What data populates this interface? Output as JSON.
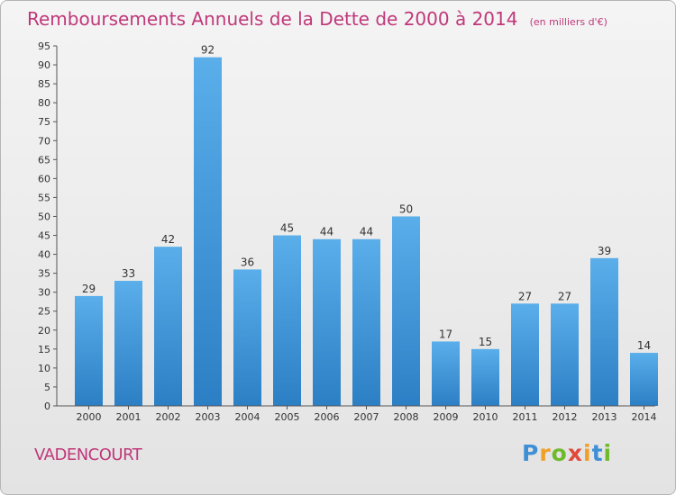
{
  "chart_data": {
    "type": "bar",
    "title": "Remboursements Annuels de la Dette de 2000 à 2014",
    "subtitle": "(en milliers d'€)",
    "xlabel": "",
    "ylabel": "",
    "categories": [
      "2000",
      "2001",
      "2002",
      "2003",
      "2004",
      "2005",
      "2006",
      "2007",
      "2008",
      "2009",
      "2010",
      "2011",
      "2012",
      "2013",
      "2014"
    ],
    "values": [
      29,
      33,
      42,
      92,
      36,
      45,
      44,
      44,
      50,
      17,
      15,
      27,
      27,
      39,
      14
    ],
    "ylim": [
      0,
      95
    ],
    "yticks": [
      0,
      5,
      10,
      15,
      20,
      25,
      30,
      35,
      40,
      45,
      50,
      55,
      60,
      65,
      70,
      75,
      80,
      85,
      90,
      95
    ],
    "grid": false,
    "legend": "none",
    "colors": {
      "bar_light": "#5aaeea",
      "bar_dark": "#2c7fc4",
      "title": "#c0387a",
      "axis": "#333333"
    }
  },
  "commune": "VADENCOURT",
  "logo": {
    "letters": [
      "P",
      "r",
      "o",
      "x",
      "i",
      "t",
      "i"
    ],
    "colors": [
      "#3f8fd6",
      "#f0a029",
      "#6fba2c",
      "#e04a3a",
      "#f0a029",
      "#3f8fd6",
      "#6fba2c"
    ]
  }
}
